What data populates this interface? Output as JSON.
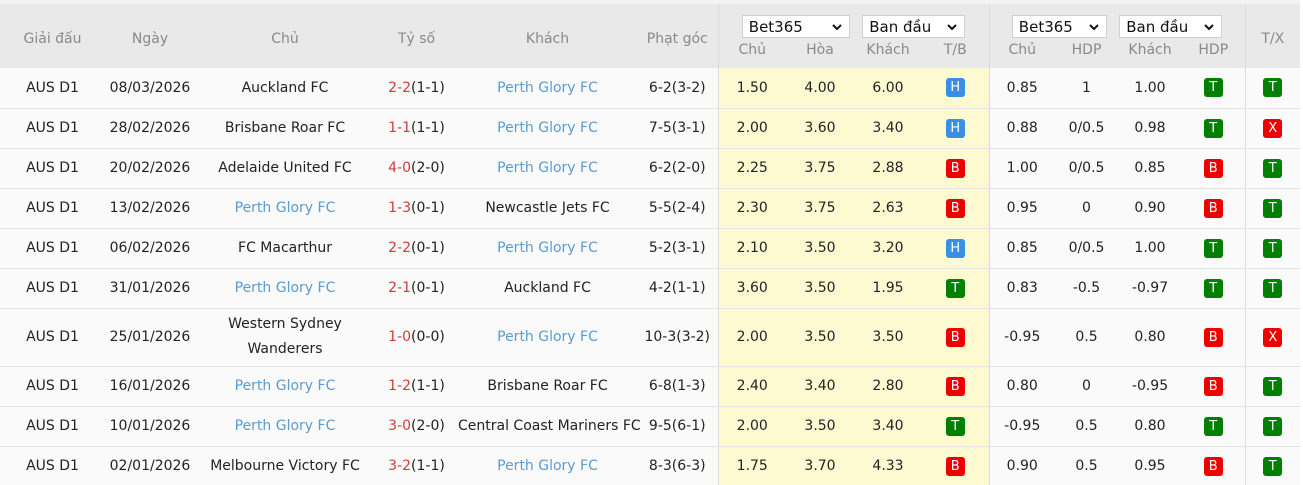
{
  "header": {
    "league": "Giải đấu",
    "date": "Ngày",
    "home": "Chủ",
    "score": "Tỷ số",
    "away": "Khách",
    "corners": "Phạt góc",
    "tx": "T/X",
    "odds_group": {
      "bookmaker_select": "Bet365",
      "type_select": "Ban đầu",
      "cols": [
        "Chủ",
        "Hòa",
        "Khách",
        "T/B"
      ]
    },
    "hdp_group": {
      "bookmaker_select": "Bet365",
      "type_select": "Ban đầu",
      "cols": [
        "Chủ",
        "HDP",
        "Khách",
        "HDP"
      ]
    }
  },
  "colors": {
    "team_link": "#5b9bd0",
    "score_ft": "#d23b3b",
    "odds_bg": "#fdfad2",
    "badge_H": "#3a8ee6",
    "badge_B": "#ee0000",
    "badge_T": "#008000",
    "badge_X": "#ee0000"
  },
  "rows": [
    {
      "league": "AUS D1",
      "date": "08/03/2026",
      "home": "Auckland FC",
      "home_link": false,
      "score_ft": "2-2",
      "score_ht": "(1-1)",
      "away": "Perth Glory FC",
      "away_link": true,
      "corners": "6-2(3-2)",
      "o_home": "1.50",
      "o_draw": "4.00",
      "o_away": "6.00",
      "tb": "H",
      "h_home": "0.85",
      "h_line": "1",
      "h_away": "1.00",
      "h_res": "T",
      "tx": "T"
    },
    {
      "league": "AUS D1",
      "date": "28/02/2026",
      "home": "Brisbane Roar FC",
      "home_link": false,
      "score_ft": "1-1",
      "score_ht": "(1-1)",
      "away": "Perth Glory FC",
      "away_link": true,
      "corners": "7-5(3-1)",
      "o_home": "2.00",
      "o_draw": "3.60",
      "o_away": "3.40",
      "tb": "H",
      "h_home": "0.88",
      "h_line": "0/0.5",
      "h_away": "0.98",
      "h_res": "T",
      "tx": "X"
    },
    {
      "league": "AUS D1",
      "date": "20/02/2026",
      "home": "Adelaide United FC",
      "home_link": false,
      "score_ft": "4-0",
      "score_ht": "(2-0)",
      "away": "Perth Glory FC",
      "away_link": true,
      "corners": "6-2(2-0)",
      "o_home": "2.25",
      "o_draw": "3.75",
      "o_away": "2.88",
      "tb": "B",
      "h_home": "1.00",
      "h_line": "0/0.5",
      "h_away": "0.85",
      "h_res": "B",
      "tx": "T"
    },
    {
      "league": "AUS D1",
      "date": "13/02/2026",
      "home": "Perth Glory FC",
      "home_link": true,
      "score_ft": "1-3",
      "score_ht": "(0-1)",
      "away": "Newcastle Jets FC",
      "away_link": false,
      "corners": "5-5(2-4)",
      "o_home": "2.30",
      "o_draw": "3.75",
      "o_away": "2.63",
      "tb": "B",
      "h_home": "0.95",
      "h_line": "0",
      "h_away": "0.90",
      "h_res": "B",
      "tx": "T"
    },
    {
      "league": "AUS D1",
      "date": "06/02/2026",
      "home": "FC Macarthur",
      "home_link": false,
      "score_ft": "2-2",
      "score_ht": "(0-1)",
      "away": "Perth Glory FC",
      "away_link": true,
      "corners": "5-2(3-1)",
      "o_home": "2.10",
      "o_draw": "3.50",
      "o_away": "3.20",
      "tb": "H",
      "h_home": "0.85",
      "h_line": "0/0.5",
      "h_away": "1.00",
      "h_res": "T",
      "tx": "T"
    },
    {
      "league": "AUS D1",
      "date": "31/01/2026",
      "home": "Perth Glory FC",
      "home_link": true,
      "score_ft": "2-1",
      "score_ht": "(0-1)",
      "away": "Auckland FC",
      "away_link": false,
      "corners": "4-2(1-1)",
      "o_home": "3.60",
      "o_draw": "3.50",
      "o_away": "1.95",
      "tb": "T",
      "h_home": "0.83",
      "h_line": "-0.5",
      "h_away": "-0.97",
      "h_res": "T",
      "tx": "T"
    },
    {
      "league": "AUS D1",
      "date": "25/01/2026",
      "home": "Western Sydney Wanderers",
      "home_link": false,
      "score_ft": "1-0",
      "score_ht": "(0-0)",
      "away": "Perth Glory FC",
      "away_link": true,
      "corners": "10-3(3-2)",
      "o_home": "2.00",
      "o_draw": "3.50",
      "o_away": "3.50",
      "tb": "B",
      "h_home": "-0.95",
      "h_line": "0.5",
      "h_away": "0.80",
      "h_res": "B",
      "tx": "X",
      "tall": true
    },
    {
      "league": "AUS D1",
      "date": "16/01/2026",
      "home": "Perth Glory FC",
      "home_link": true,
      "score_ft": "1-2",
      "score_ht": "(1-1)",
      "away": "Brisbane Roar FC",
      "away_link": false,
      "corners": "6-8(1-3)",
      "o_home": "2.40",
      "o_draw": "3.40",
      "o_away": "2.80",
      "tb": "B",
      "h_home": "0.80",
      "h_line": "0",
      "h_away": "-0.95",
      "h_res": "B",
      "tx": "T"
    },
    {
      "league": "AUS D1",
      "date": "10/01/2026",
      "home": "Perth Glory FC",
      "home_link": true,
      "score_ft": "3-0",
      "score_ht": "(2-0)",
      "away": "Central Coast Mariners FC",
      "away_link": false,
      "corners": "9-5(6-1)",
      "o_home": "2.00",
      "o_draw": "3.50",
      "o_away": "3.40",
      "tb": "T",
      "h_home": "-0.95",
      "h_line": "0.5",
      "h_away": "0.80",
      "h_res": "T",
      "tx": "T"
    },
    {
      "league": "AUS D1",
      "date": "02/01/2026",
      "home": "Melbourne Victory FC",
      "home_link": false,
      "score_ft": "3-2",
      "score_ht": "(1-1)",
      "away": "Perth Glory FC",
      "away_link": true,
      "corners": "8-3(6-3)",
      "o_home": "1.75",
      "o_draw": "3.70",
      "o_away": "4.33",
      "tb": "B",
      "h_home": "0.90",
      "h_line": "0.5",
      "h_away": "0.95",
      "h_res": "B",
      "tx": "T"
    }
  ]
}
